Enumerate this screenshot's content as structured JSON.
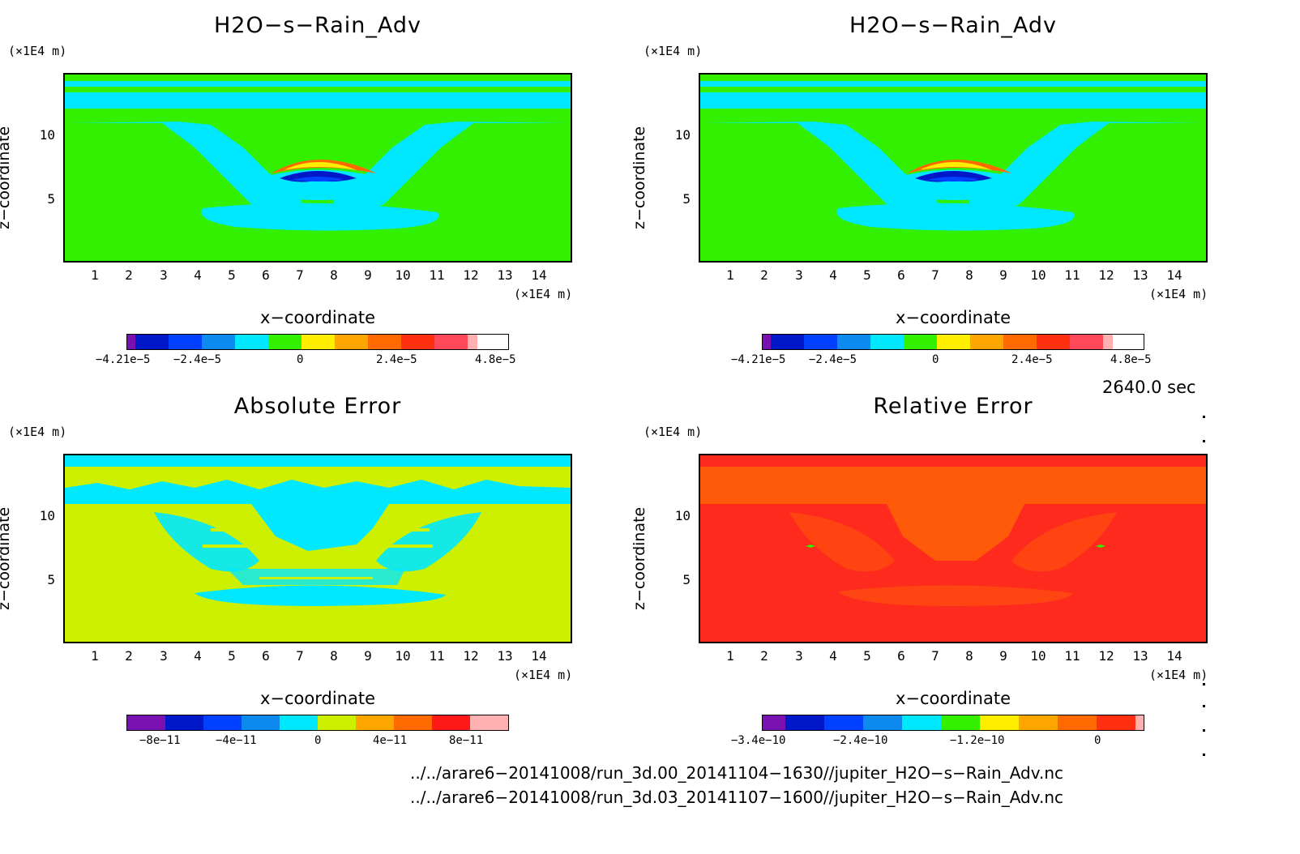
{
  "panels": [
    {
      "title": "H2O−s−Rain_Adv",
      "y_scale": "(×1E4 m)",
      "x_scale": "(×1E4 m)",
      "xlabel": "x−coordinate",
      "ylabel": "z−coordinate",
      "background": "#33f000",
      "colorbar_labels": [
        "−4.21e−5",
        "−2.4e−5",
        "0",
        "2.4e−5",
        "4.8e−5"
      ],
      "colorbar_colors": [
        "#7a10b0",
        "#0018c8",
        "#0040ff",
        "#0c8af0",
        "#00e8ff",
        "#33f000",
        "#ffee00",
        "#ffa500",
        "#ff6a00",
        "#ff3010",
        "#ff4858",
        "#ffb0b0"
      ]
    },
    {
      "title": "H2O−s−Rain_Adv",
      "y_scale": "(×1E4 m)",
      "x_scale": "(×1E4 m)",
      "xlabel": "x−coordinate",
      "ylabel": "z−coordinate",
      "background": "#33f000",
      "colorbar_labels": [
        "−4.21e−5",
        "−2.4e−5",
        "0",
        "2.4e−5",
        "4.8e−5"
      ],
      "colorbar_colors": [
        "#7a10b0",
        "#0018c8",
        "#0040ff",
        "#0c8af0",
        "#00e8ff",
        "#33f000",
        "#ffee00",
        "#ffa500",
        "#ff6a00",
        "#ff3010",
        "#ff4858",
        "#ffb0b0"
      ]
    },
    {
      "title": "Absolute Error",
      "y_scale": "(×1E4 m)",
      "x_scale": "(×1E4 m)",
      "xlabel": "x−coordinate",
      "ylabel": "z−coordinate",
      "background": "#ccf000",
      "colorbar_labels": [
        "−8e−11",
        "−4e−11",
        "0",
        "4e−11",
        "8e−11"
      ],
      "colorbar_colors": [
        "#7a10b0",
        "#0018c8",
        "#0040ff",
        "#0c8af0",
        "#00e8ff",
        "#ccf000",
        "#ffa500",
        "#ff6a00",
        "#ff1818",
        "#ffb0b0"
      ]
    },
    {
      "title": "Relative Error",
      "y_scale": "(×1E4 m)",
      "x_scale": "(×1E4 m)",
      "xlabel": "x−coordinate",
      "ylabel": "z−coordinate",
      "background": "#ff2a1e",
      "colorbar_labels": [
        "−3.4e−10",
        "−2.4e−10",
        "−1.2e−10",
        "0"
      ],
      "colorbar_colors": [
        "#7a10b0",
        "#0018c8",
        "#0040ff",
        "#0c8af0",
        "#00e8ff",
        "#33f000",
        "#ffee00",
        "#ffa500",
        "#ff6a00",
        "#ff3010",
        "#ffb0b0"
      ]
    }
  ],
  "time_label": "2640.0 sec",
  "footer": [
    "../../arare6−20141008/run_3d.00_20141104−1630//jupiter_H2O−s−Rain_Adv.nc",
    "../../arare6−20141008/run_3d.03_20141107−1600//jupiter_H2O−s−Rain_Adv.nc"
  ],
  "chart_data": [
    {
      "type": "heatmap",
      "title": "H2O−s−Rain_Adv",
      "xlabel": "x−coordinate",
      "ylabel": "z−coordinate",
      "x_ticks": [
        1,
        2,
        3,
        4,
        5,
        6,
        7,
        8,
        9,
        10,
        11,
        12,
        13,
        14
      ],
      "y_ticks": [
        5,
        10
      ],
      "xlim": [
        0.05,
        14.9
      ],
      "ylim": [
        0.2,
        14.8
      ],
      "colorbar": [
        "−4.21e−5",
        "−2.4e−5",
        "0",
        "2.4e−5",
        "4.8e−5"
      ]
    },
    {
      "type": "heatmap",
      "title": "H2O−s−Rain_Adv",
      "xlabel": "x−coordinate",
      "ylabel": "z−coordinate",
      "x_ticks": [
        1,
        2,
        3,
        4,
        5,
        6,
        7,
        8,
        9,
        10,
        11,
        12,
        13,
        14
      ],
      "y_ticks": [
        5,
        10
      ],
      "xlim": [
        0.05,
        14.9
      ],
      "ylim": [
        0.2,
        14.8
      ],
      "colorbar": [
        "−4.21e−5",
        "−2.4e−5",
        "0",
        "2.4e−5",
        "4.8e−5"
      ]
    },
    {
      "type": "heatmap",
      "title": "Absolute Error",
      "xlabel": "x−coordinate",
      "ylabel": "z−coordinate",
      "x_ticks": [
        1,
        2,
        3,
        4,
        5,
        6,
        7,
        8,
        9,
        10,
        11,
        12,
        13,
        14
      ],
      "y_ticks": [
        5,
        10
      ],
      "xlim": [
        0.05,
        14.9
      ],
      "ylim": [
        0.2,
        14.8
      ],
      "colorbar": [
        "−8e−11",
        "−4e−11",
        "0",
        "4e−11",
        "8e−11"
      ]
    },
    {
      "type": "heatmap",
      "title": "Relative Error",
      "xlabel": "x−coordinate",
      "ylabel": "z−coordinate",
      "x_ticks": [
        1,
        2,
        3,
        4,
        5,
        6,
        7,
        8,
        9,
        10,
        11,
        12,
        13,
        14
      ],
      "y_ticks": [
        5,
        10
      ],
      "xlim": [
        0.05,
        14.9
      ],
      "ylim": [
        0.2,
        14.8
      ],
      "colorbar": [
        "−3.4e−10",
        "−2.4e−10",
        "−1.2e−10",
        "0"
      ]
    }
  ]
}
